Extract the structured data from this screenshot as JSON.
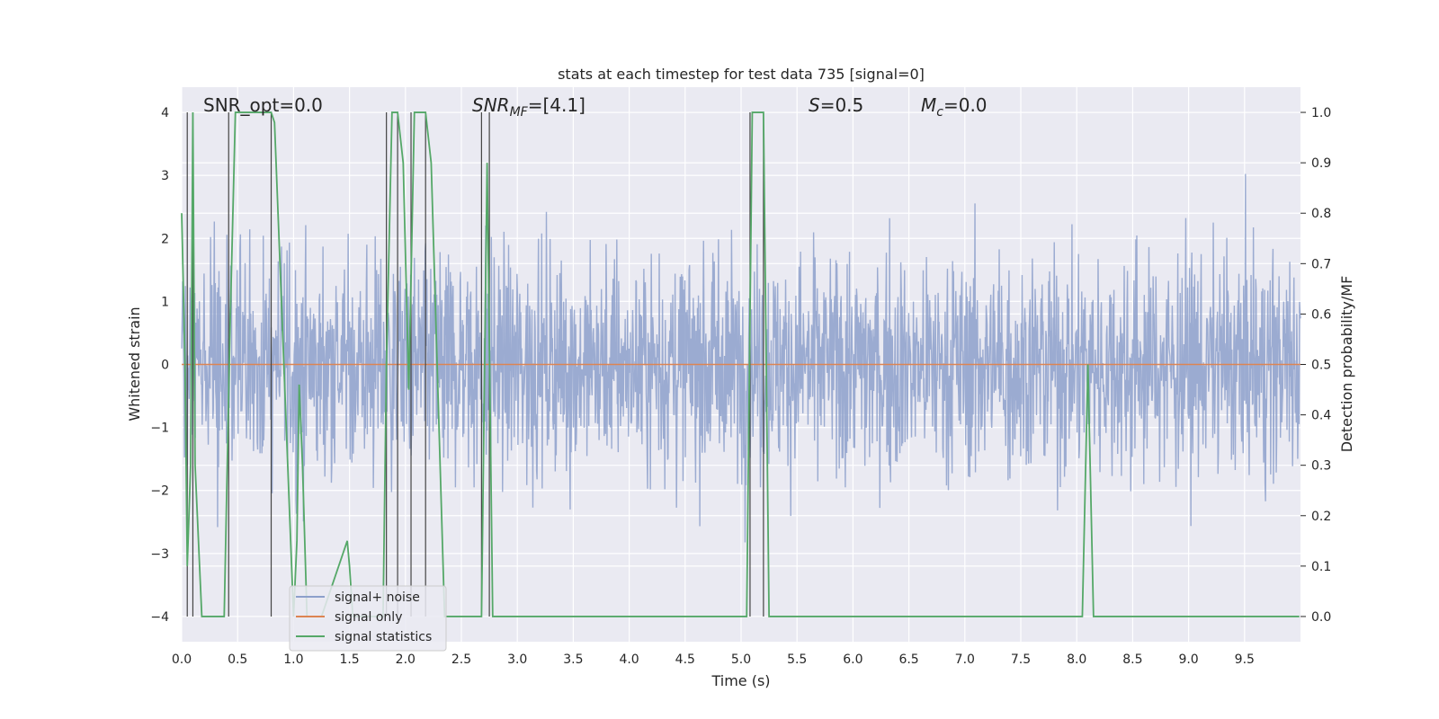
{
  "chart_data": {
    "type": "line",
    "title": "stats at each timestep for test data 735 [signal=0]",
    "xlabel": "Time (s)",
    "ylabel_left": "Whitened strain",
    "ylabel_right": "Detection probability/MF",
    "xlim": [
      0.0,
      10.0
    ],
    "ylim_left": [
      -4.4,
      4.4
    ],
    "ylim_right": [
      -0.05,
      1.05
    ],
    "x_ticks": [
      "0.0",
      "0.5",
      "1.0",
      "1.5",
      "2.0",
      "2.5",
      "3.0",
      "3.5",
      "4.0",
      "4.5",
      "5.0",
      "5.5",
      "6.0",
      "6.5",
      "7.0",
      "7.5",
      "8.0",
      "8.5",
      "9.0",
      "9.5"
    ],
    "y_left_ticks": [
      "4",
      "3",
      "2",
      "1",
      "0",
      "−1",
      "−2",
      "−3",
      "−4"
    ],
    "y_right_ticks": [
      "1.0",
      "0.9",
      "0.8",
      "0.7",
      "0.6",
      "0.5",
      "0.4",
      "0.3",
      "0.2",
      "0.1",
      "0.0"
    ],
    "grid": true,
    "annotations": {
      "snr_opt": "SNR_opt=0.0",
      "snr_mf_prefix": "SNR",
      "snr_mf_sub": "MF",
      "snr_mf_value": "=[4.1]",
      "s_symbol": "S",
      "s_value": "=0.5",
      "mc_symbol": "M",
      "mc_sub": "c",
      "mc_value": "=0.0"
    },
    "legend": {
      "placement": "lower-left",
      "entries": [
        {
          "label": "signal+ noise",
          "color": "#8da0cb"
        },
        {
          "label": "signal only",
          "color": "#dd8452"
        },
        {
          "label": "signal statistics",
          "color": "#55a868"
        }
      ]
    },
    "series": [
      {
        "name": "signal+ noise",
        "axis": "left",
        "style": "noise",
        "color": "#8da0cb",
        "amplitude_range": [
          -4.0,
          4.0
        ],
        "typical_range": [
          -2.1,
          2.3
        ]
      },
      {
        "name": "signal only",
        "axis": "left",
        "color": "#dd8452",
        "x": [
          0.0,
          10.0
        ],
        "y": [
          0.0,
          0.0
        ]
      },
      {
        "name": "signal statistics",
        "axis": "right",
        "color": "#55a868",
        "x": [
          0.0,
          0.03,
          0.05,
          0.08,
          0.1,
          0.12,
          0.18,
          0.38,
          0.43,
          0.48,
          0.5,
          0.8,
          0.83,
          1.0,
          1.03,
          1.05,
          1.08,
          1.12,
          1.15,
          1.25,
          1.48,
          1.5,
          1.53,
          1.73,
          1.8,
          1.83,
          1.88,
          1.93,
          1.98,
          2.03,
          2.08,
          2.13,
          2.18,
          2.23,
          2.35,
          2.5,
          2.63,
          2.68,
          2.73,
          2.78,
          5.05,
          5.1,
          5.15,
          5.2,
          5.25,
          8.05,
          8.1,
          8.15,
          8.2,
          9.99
        ],
        "y": [
          0.8,
          0.5,
          0.1,
          0.3,
          1.0,
          0.3,
          0.0,
          0.0,
          0.55,
          1.0,
          1.0,
          1.0,
          0.98,
          0.0,
          0.15,
          0.46,
          0.3,
          0.0,
          0.0,
          0.0,
          0.15,
          0.1,
          0.0,
          0.0,
          0.0,
          0.5,
          1.0,
          1.0,
          0.9,
          0.45,
          1.0,
          1.0,
          1.0,
          0.9,
          0.0,
          0.0,
          0.0,
          0.0,
          0.9,
          0.0,
          0.0,
          1.0,
          1.0,
          1.0,
          0.0,
          0.0,
          0.5,
          0.0,
          0.0,
          0.0
        ]
      }
    ],
    "vertical_markers": [
      0.05,
      0.1,
      0.42,
      0.8,
      1.83,
      1.93,
      2.05,
      2.18,
      2.68,
      2.75,
      5.08,
      5.2
    ]
  }
}
